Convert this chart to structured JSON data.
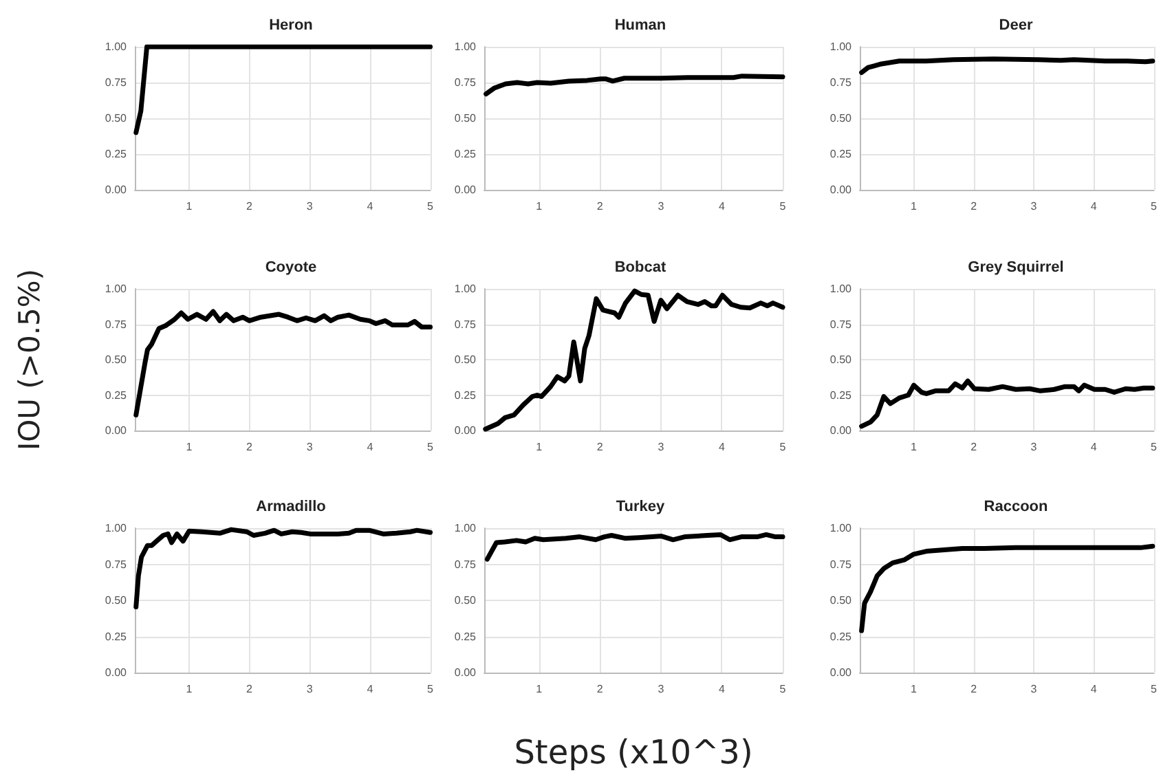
{
  "chart_data": [
    {
      "type": "line",
      "title": "Heron",
      "x": [
        0.12,
        0.2,
        0.3,
        5
      ],
      "values": [
        0.4,
        0.55,
        1.0,
        1.0
      ],
      "color": "#000000",
      "xlim": [
        0.1,
        5
      ],
      "xticks": [
        1,
        2,
        3,
        4,
        5
      ],
      "ylim": [
        0,
        1
      ],
      "yticks": [
        {
          "value": 0,
          "label": "0.00"
        },
        {
          "value": 0.25,
          "label": "0.25"
        },
        {
          "value": 0.5,
          "label": "0.50"
        },
        {
          "value": 0.75,
          "label": "0.75"
        },
        {
          "value": 1,
          "label": "1.00"
        }
      ],
      "grid": true
    },
    {
      "type": "line",
      "title": "Human",
      "x": [
        0.13,
        0.26,
        0.45,
        0.64,
        0.82,
        0.97,
        1.19,
        1.49,
        1.79,
        2.01,
        2.1,
        2.21,
        2.4,
        3.0,
        3.44,
        4.19,
        4.33,
        5
      ],
      "values": [
        0.67,
        0.71,
        0.74,
        0.75,
        0.74,
        0.75,
        0.745,
        0.76,
        0.765,
        0.775,
        0.775,
        0.76,
        0.78,
        0.78,
        0.785,
        0.785,
        0.795,
        0.79
      ],
      "color": "#000000",
      "xlim": [
        0.1,
        5
      ],
      "xticks": [
        1,
        2,
        3,
        4,
        5
      ],
      "ylim": [
        0,
        1
      ],
      "yticks": [
        {
          "value": 0,
          "label": "0.00"
        },
        {
          "value": 0.25,
          "label": "0.25"
        },
        {
          "value": 0.5,
          "label": "0.50"
        },
        {
          "value": 0.75,
          "label": "0.75"
        },
        {
          "value": 1,
          "label": "1.00"
        }
      ],
      "grid": true
    },
    {
      "type": "line",
      "title": "Deer",
      "x": [
        0.13,
        0.24,
        0.46,
        0.76,
        1.21,
        1.66,
        2.33,
        3.07,
        3.45,
        3.67,
        4.19,
        4.56,
        4.86,
        4.98
      ],
      "values": [
        0.82,
        0.855,
        0.88,
        0.9,
        0.9,
        0.91,
        0.915,
        0.91,
        0.905,
        0.91,
        0.9,
        0.9,
        0.895,
        0.9
      ],
      "color": "#000000",
      "xlim": [
        0.1,
        5
      ],
      "xticks": [
        1,
        2,
        3,
        4,
        5
      ],
      "ylim": [
        0,
        1
      ],
      "yticks": [
        {
          "value": 0,
          "label": "0.00"
        },
        {
          "value": 0.25,
          "label": "0.25"
        },
        {
          "value": 0.5,
          "label": "0.50"
        },
        {
          "value": 0.75,
          "label": "0.75"
        },
        {
          "value": 1,
          "label": "1.00"
        }
      ],
      "grid": true
    },
    {
      "type": "line",
      "title": "Coyote",
      "ylabel": "IOU (>0.5%)",
      "x": [
        0.12,
        0.27,
        0.31,
        0.38,
        0.5,
        0.61,
        0.76,
        0.87,
        0.98,
        1.13,
        1.28,
        1.4,
        1.51,
        1.62,
        1.74,
        1.89,
        2.0,
        2.19,
        2.49,
        2.64,
        2.79,
        2.94,
        3.09,
        3.24,
        3.35,
        3.47,
        3.65,
        3.84,
        3.99,
        4.1,
        4.25,
        4.37,
        4.63,
        4.74,
        4.86,
        5
      ],
      "values": [
        0.11,
        0.48,
        0.57,
        0.61,
        0.72,
        0.74,
        0.785,
        0.83,
        0.785,
        0.82,
        0.785,
        0.84,
        0.775,
        0.82,
        0.775,
        0.8,
        0.775,
        0.8,
        0.82,
        0.8,
        0.775,
        0.795,
        0.775,
        0.81,
        0.775,
        0.8,
        0.815,
        0.785,
        0.775,
        0.755,
        0.775,
        0.745,
        0.745,
        0.77,
        0.73,
        0.73
      ],
      "color": "#000000",
      "xlim": [
        0.1,
        5
      ],
      "xticks": [
        1,
        2,
        3,
        4,
        5
      ],
      "ylim": [
        0,
        1
      ],
      "yticks": [
        {
          "value": 0,
          "label": "0.00"
        },
        {
          "value": 0.25,
          "label": "0.25"
        },
        {
          "value": 0.5,
          "label": "0.50"
        },
        {
          "value": 0.75,
          "label": "0.75"
        },
        {
          "value": 1,
          "label": "1.00"
        }
      ],
      "grid": true
    },
    {
      "type": "line",
      "title": "Bobcat",
      "x": [
        0.12,
        0.33,
        0.44,
        0.59,
        0.74,
        0.89,
        0.97,
        1.04,
        1.19,
        1.3,
        1.42,
        1.49,
        1.57,
        1.68,
        1.75,
        1.82,
        1.94,
        2.05,
        2.24,
        2.31,
        2.42,
        2.57,
        2.68,
        2.79,
        2.89,
        3.0,
        3.1,
        3.28,
        3.43,
        3.61,
        3.72,
        3.83,
        3.9,
        4.01,
        4.16,
        4.31,
        4.46,
        4.64,
        4.75,
        4.84,
        5.0
      ],
      "values": [
        0.01,
        0.05,
        0.09,
        0.11,
        0.18,
        0.24,
        0.25,
        0.24,
        0.31,
        0.38,
        0.35,
        0.385,
        0.625,
        0.35,
        0.58,
        0.67,
        0.93,
        0.85,
        0.83,
        0.8,
        0.9,
        0.985,
        0.96,
        0.955,
        0.77,
        0.92,
        0.86,
        0.955,
        0.91,
        0.89,
        0.91,
        0.88,
        0.88,
        0.955,
        0.89,
        0.87,
        0.865,
        0.9,
        0.88,
        0.9,
        0.87
      ],
      "color": "#000000",
      "xlim": [
        0.1,
        5
      ],
      "xticks": [
        1,
        2,
        3,
        4,
        5
      ],
      "ylim": [
        0,
        1
      ],
      "yticks": [
        {
          "value": 0,
          "label": "0.00"
        },
        {
          "value": 0.25,
          "label": "0.25"
        },
        {
          "value": 0.5,
          "label": "0.50"
        },
        {
          "value": 0.75,
          "label": "0.75"
        },
        {
          "value": 1,
          "label": "1.00"
        }
      ],
      "grid": true
    },
    {
      "type": "line",
      "title": "Grey Squirrel",
      "x": [
        0.13,
        0.28,
        0.39,
        0.5,
        0.61,
        0.76,
        0.91,
        1.0,
        1.13,
        1.21,
        1.36,
        1.58,
        1.69,
        1.81,
        1.9,
        2.01,
        2.25,
        2.48,
        2.7,
        2.93,
        3.11,
        3.34,
        3.52,
        3.67,
        3.75,
        3.84,
        4.01,
        4.19,
        4.34,
        4.53,
        4.68,
        4.83,
        4.98
      ],
      "values": [
        0.03,
        0.06,
        0.11,
        0.24,
        0.19,
        0.23,
        0.25,
        0.32,
        0.27,
        0.26,
        0.28,
        0.28,
        0.33,
        0.3,
        0.35,
        0.295,
        0.29,
        0.31,
        0.29,
        0.295,
        0.28,
        0.29,
        0.31,
        0.31,
        0.28,
        0.32,
        0.29,
        0.29,
        0.27,
        0.295,
        0.29,
        0.3,
        0.3
      ],
      "color": "#000000",
      "xlim": [
        0.1,
        5
      ],
      "xticks": [
        1,
        2,
        3,
        4,
        5
      ],
      "ylim": [
        0,
        1
      ],
      "yticks": [
        {
          "value": 0,
          "label": "0.00"
        },
        {
          "value": 0.25,
          "label": "0.25"
        },
        {
          "value": 0.5,
          "label": "0.50"
        },
        {
          "value": 0.75,
          "label": "0.75"
        },
        {
          "value": 1,
          "label": "1.00"
        }
      ],
      "grid": true
    },
    {
      "type": "line",
      "title": "Armadillo",
      "x": [
        0.12,
        0.16,
        0.21,
        0.31,
        0.38,
        0.46,
        0.57,
        0.65,
        0.71,
        0.8,
        0.9,
        1.0,
        1.21,
        1.51,
        1.7,
        1.96,
        2.07,
        2.26,
        2.41,
        2.53,
        2.71,
        2.86,
        3.01,
        3.47,
        3.65,
        3.77,
        3.99,
        4.22,
        4.44,
        4.67,
        4.78,
        5
      ],
      "values": [
        0.455,
        0.67,
        0.8,
        0.88,
        0.88,
        0.91,
        0.95,
        0.96,
        0.9,
        0.96,
        0.91,
        0.98,
        0.975,
        0.965,
        0.99,
        0.975,
        0.95,
        0.965,
        0.985,
        0.96,
        0.975,
        0.97,
        0.96,
        0.96,
        0.965,
        0.985,
        0.985,
        0.96,
        0.965,
        0.975,
        0.985,
        0.97
      ],
      "color": "#000000",
      "xlim": [
        0.1,
        5
      ],
      "xticks": [
        1,
        2,
        3,
        4,
        5
      ],
      "ylim": [
        0,
        1
      ],
      "yticks": [
        {
          "value": 0,
          "label": "0.00"
        },
        {
          "value": 0.25,
          "label": "0.25"
        },
        {
          "value": 0.5,
          "label": "0.50"
        },
        {
          "value": 0.75,
          "label": "0.75"
        },
        {
          "value": 1,
          "label": "1.00"
        }
      ],
      "grid": true
    },
    {
      "type": "line",
      "title": "Turkey",
      "xlabel": "Steps (x10^3)",
      "x": [
        0.15,
        0.3,
        0.44,
        0.63,
        0.78,
        0.93,
        1.07,
        1.44,
        1.67,
        1.93,
        2.07,
        2.19,
        2.41,
        2.64,
        3.01,
        3.2,
        3.39,
        3.76,
        3.98,
        4.13,
        4.32,
        4.58,
        4.73,
        4.88,
        5.0
      ],
      "values": [
        0.785,
        0.9,
        0.905,
        0.915,
        0.905,
        0.93,
        0.92,
        0.93,
        0.94,
        0.92,
        0.94,
        0.95,
        0.93,
        0.935,
        0.945,
        0.92,
        0.94,
        0.95,
        0.955,
        0.92,
        0.94,
        0.94,
        0.955,
        0.94,
        0.94
      ],
      "color": "#000000",
      "xlim": [
        0.1,
        5
      ],
      "xticks": [
        1,
        2,
        3,
        4,
        5
      ],
      "ylim": [
        0,
        1
      ],
      "yticks": [
        {
          "value": 0,
          "label": "0.00"
        },
        {
          "value": 0.25,
          "label": "0.25"
        },
        {
          "value": 0.5,
          "label": "0.50"
        },
        {
          "value": 0.75,
          "label": "0.75"
        },
        {
          "value": 1,
          "label": "1.00"
        }
      ],
      "grid": true
    },
    {
      "type": "line",
      "title": "Raccoon",
      "x": [
        0.13,
        0.18,
        0.28,
        0.39,
        0.5,
        0.65,
        0.84,
        1.0,
        1.21,
        1.51,
        1.81,
        2.18,
        2.7,
        3.45,
        4.19,
        4.78,
        4.98
      ],
      "values": [
        0.29,
        0.48,
        0.56,
        0.67,
        0.72,
        0.76,
        0.78,
        0.82,
        0.84,
        0.85,
        0.86,
        0.86,
        0.865,
        0.865,
        0.865,
        0.865,
        0.875
      ],
      "color": "#000000",
      "xlim": [
        0.1,
        5
      ],
      "xticks": [
        1,
        2,
        3,
        4,
        5
      ],
      "ylim": [
        0,
        1
      ],
      "yticks": [
        {
          "value": 0,
          "label": "0.00"
        },
        {
          "value": 0.25,
          "label": "0.25"
        },
        {
          "value": 0.5,
          "label": "0.50"
        },
        {
          "value": 0.75,
          "label": "0.75"
        },
        {
          "value": 1,
          "label": "1.00"
        }
      ],
      "grid": true
    }
  ]
}
